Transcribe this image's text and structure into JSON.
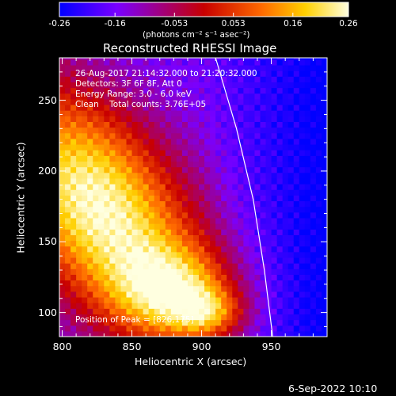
{
  "colorbar": {
    "tick_labels": [
      "-0.26",
      "-0.16",
      "-0.053",
      "0.053",
      "0.16",
      "0.26"
    ],
    "tick_values": [
      -0.26,
      -0.16,
      -0.053,
      0.053,
      0.16,
      0.26
    ],
    "range": [
      -0.26,
      0.26
    ],
    "units_label": "(photons cm⁻² s⁻¹ asec⁻²)",
    "colors": [
      "#0000ff",
      "#7a00ff",
      "#c80000",
      "#ff6a00",
      "#ffd000",
      "#ffffe0"
    ]
  },
  "chart_data": {
    "type": "heatmap",
    "title": "Reconstructed RHESSI Image",
    "xlabel": "Heliocentric X (arcsec)",
    "ylabel": "Heliocentric Y (arcsec)",
    "xlim": [
      798,
      990
    ],
    "ylim": [
      83,
      280
    ],
    "xticks": [
      800,
      850,
      900,
      950
    ],
    "xtick_labels": [
      "800",
      "850",
      "900",
      "950"
    ],
    "yticks": [
      100,
      150,
      200,
      250
    ],
    "ytick_labels": [
      "100",
      "150",
      "200",
      "250"
    ],
    "peak": [
      826,
      175
    ],
    "limb_curve": [
      [
        910,
        280
      ],
      [
        925,
        230
      ],
      [
        937,
        180
      ],
      [
        945,
        130
      ],
      [
        951,
        83
      ]
    ],
    "annotations": {
      "time": "26-Aug-2017 21:14:32.000 to 21:20:32.000",
      "detectors": "Detectors: 3F 6F 8F, Att 0",
      "energy": "Energy Range: 3.0 - 6.0 keV",
      "counts": "Clean    Total counts: 3.76E+05",
      "peak": "Position of Peak = [826,175]"
    }
  },
  "footer": {
    "date": "6-Sep-2022 10:10"
  }
}
